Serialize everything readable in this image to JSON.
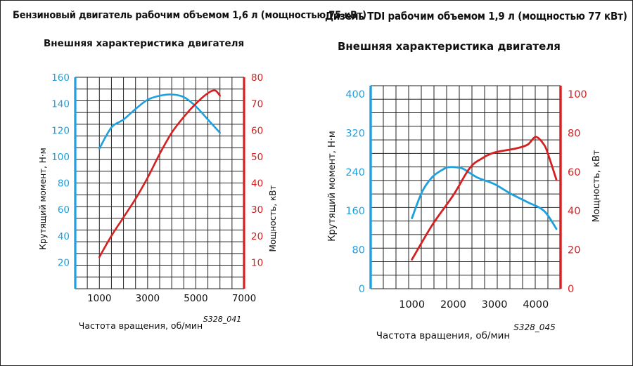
{
  "colors": {
    "torque": "#1ea0e0",
    "power": "#d42020",
    "grid": "#222222",
    "text": "#111111"
  },
  "chart_data": [
    {
      "type": "line",
      "title": "Бензиновый двигатель рабочим объемом 1,6 л (мощностью 75 кВт)",
      "subtitle": "Внешняя характеристика двигателя",
      "xlabel": "Частота вращения, об/мин",
      "ylabel_left": "Крутящий момент, Н·м",
      "ylabel_right": "Мощность, кВт",
      "code": "S328_041",
      "xlim": [
        0,
        7000
      ],
      "x_ticks": [
        "1000",
        "3000",
        "5000",
        "7000"
      ],
      "ylim_left": [
        0,
        160
      ],
      "left_ticks": [
        "20",
        "40",
        "60",
        "80",
        "100",
        "120",
        "140",
        "160"
      ],
      "ylim_right": [
        0,
        80
      ],
      "right_ticks": [
        "10",
        "20",
        "30",
        "40",
        "50",
        "60",
        "70",
        "80"
      ],
      "series": [
        {
          "name": "Крутящий момент, Н·м",
          "axis": "left",
          "x": [
            1000,
            1500,
            2000,
            2500,
            3000,
            3500,
            4000,
            4500,
            5000,
            5500,
            6000
          ],
          "y": [
            106,
            122,
            128,
            136,
            143,
            146,
            147,
            145,
            138,
            128,
            118
          ]
        },
        {
          "name": "Мощность, кВт",
          "axis": "right",
          "x": [
            1000,
            1500,
            2000,
            2500,
            3000,
            3500,
            4000,
            4500,
            5000,
            5500,
            5800,
            6000
          ],
          "y": [
            12,
            20,
            27,
            34,
            42,
            51,
            59,
            65,
            70,
            74,
            75,
            73
          ]
        }
      ]
    },
    {
      "type": "line",
      "title": "Дизель TDI рабочим объемом 1,9 л (мощностью 77 кВт)",
      "subtitle": "Внешняя характеристика двигателя",
      "xlabel": "Частота вращения, об/мин",
      "ylabel_left": "Крутящий момент, Н·м",
      "ylabel_right": "Мощность, кВт",
      "code": "S328_045",
      "xlim": [
        0,
        4600
      ],
      "x_ticks": [
        "1000",
        "2000",
        "3000",
        "4000"
      ],
      "ylim_left": [
        0,
        400
      ],
      "left_ticks": [
        "0",
        "80",
        "160",
        "240",
        "320",
        "400"
      ],
      "ylim_right": [
        0,
        100
      ],
      "right_ticks": [
        "0",
        "20",
        "40",
        "60",
        "80",
        "100"
      ],
      "series": [
        {
          "name": "Крутящий момент, Н·м",
          "axis": "left",
          "x": [
            1000,
            1250,
            1500,
            1750,
            1900,
            2200,
            2400,
            2600,
            3000,
            3400,
            3800,
            4200,
            4500
          ],
          "y": [
            145,
            200,
            230,
            245,
            250,
            248,
            238,
            228,
            215,
            195,
            178,
            160,
            123
          ]
        },
        {
          "name": "Мощность, кВт",
          "axis": "right",
          "x": [
            1000,
            1500,
            2000,
            2400,
            2700,
            3000,
            3500,
            3800,
            4000,
            4200,
            4300,
            4500
          ],
          "y": [
            15,
            33,
            48,
            62,
            67,
            70,
            72,
            74,
            78,
            74,
            69,
            56
          ]
        }
      ]
    }
  ]
}
